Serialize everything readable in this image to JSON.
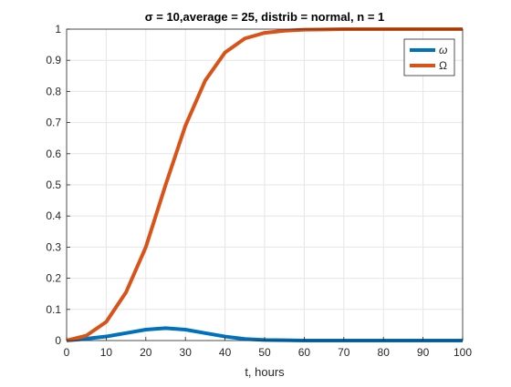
{
  "chart_data": {
    "type": "line",
    "title": "σ = 10,average = 25, distrib = normal, n = 1",
    "xlabel": "t, hours",
    "ylabel": "",
    "xlim": [
      0,
      100
    ],
    "ylim": [
      0,
      1
    ],
    "xticks": [
      0,
      10,
      20,
      30,
      40,
      50,
      60,
      70,
      80,
      90,
      100
    ],
    "yticks": [
      0,
      0.1,
      0.2,
      0.3,
      0.4,
      0.5,
      0.6,
      0.7,
      0.8,
      0.9,
      1
    ],
    "grid": true,
    "legend_position": "top-right",
    "x": [
      0,
      5,
      10,
      15,
      20,
      25,
      30,
      35,
      40,
      45,
      50,
      55,
      60,
      65,
      70,
      75,
      80,
      85,
      90,
      95,
      100
    ],
    "series": [
      {
        "name": "ω",
        "color": "#0072BD",
        "values": [
          0,
          0.006,
          0.013,
          0.024,
          0.035,
          0.04,
          0.035,
          0.024,
          0.013,
          0.005,
          0.002,
          0.001,
          0,
          0,
          0,
          0,
          0,
          0,
          0,
          0,
          0
        ]
      },
      {
        "name": "Ω",
        "color": "#D95319",
        "values": [
          0,
          0.016,
          0.06,
          0.155,
          0.3,
          0.5,
          0.69,
          0.835,
          0.925,
          0.97,
          0.988,
          0.995,
          0.998,
          0.999,
          1,
          1,
          1,
          1,
          1,
          1,
          1
        ]
      }
    ]
  }
}
